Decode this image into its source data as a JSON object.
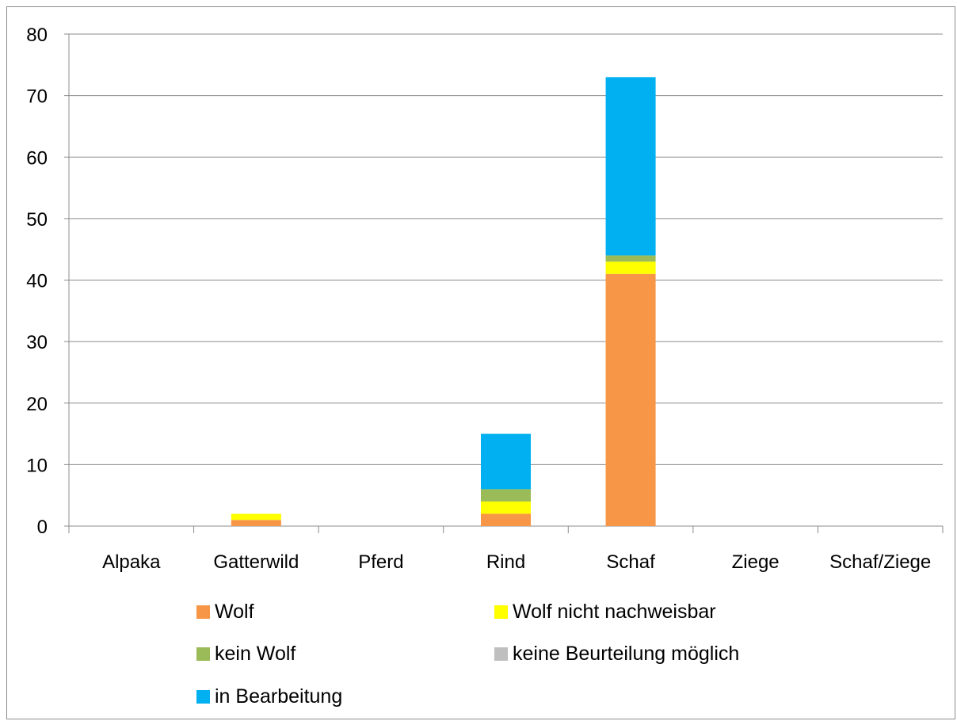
{
  "chart_data": {
    "type": "bar",
    "stacked": true,
    "title": "",
    "xlabel": "",
    "ylabel": "",
    "ylim": [
      0,
      80
    ],
    "yticks": [
      0,
      10,
      20,
      30,
      40,
      50,
      60,
      70,
      80
    ],
    "grid": true,
    "legend_position": "bottom",
    "categories": [
      "Alpaka",
      "Gatterwild",
      "Pferd",
      "Rind",
      "Schaf",
      "Ziege",
      "Schaf/Ziege"
    ],
    "series": [
      {
        "name": "Wolf",
        "color": "#f79646",
        "values": [
          0,
          1,
          0,
          2,
          41,
          0,
          0
        ]
      },
      {
        "name": "Wolf nicht nachweisbar",
        "color": "#ffff00",
        "values": [
          0,
          1,
          0,
          2,
          2,
          0,
          0
        ]
      },
      {
        "name": "kein Wolf",
        "color": "#9bbb59",
        "values": [
          0,
          0,
          0,
          2,
          1,
          0,
          0
        ]
      },
      {
        "name": "keine Beurteilung möglich",
        "color": "#bfbfbf",
        "values": [
          0,
          0,
          0,
          0,
          0,
          0,
          0
        ]
      },
      {
        "name": "in Bearbeitung",
        "color": "#00b0f0",
        "values": [
          0,
          0,
          0,
          9,
          29,
          0,
          0
        ]
      }
    ]
  }
}
